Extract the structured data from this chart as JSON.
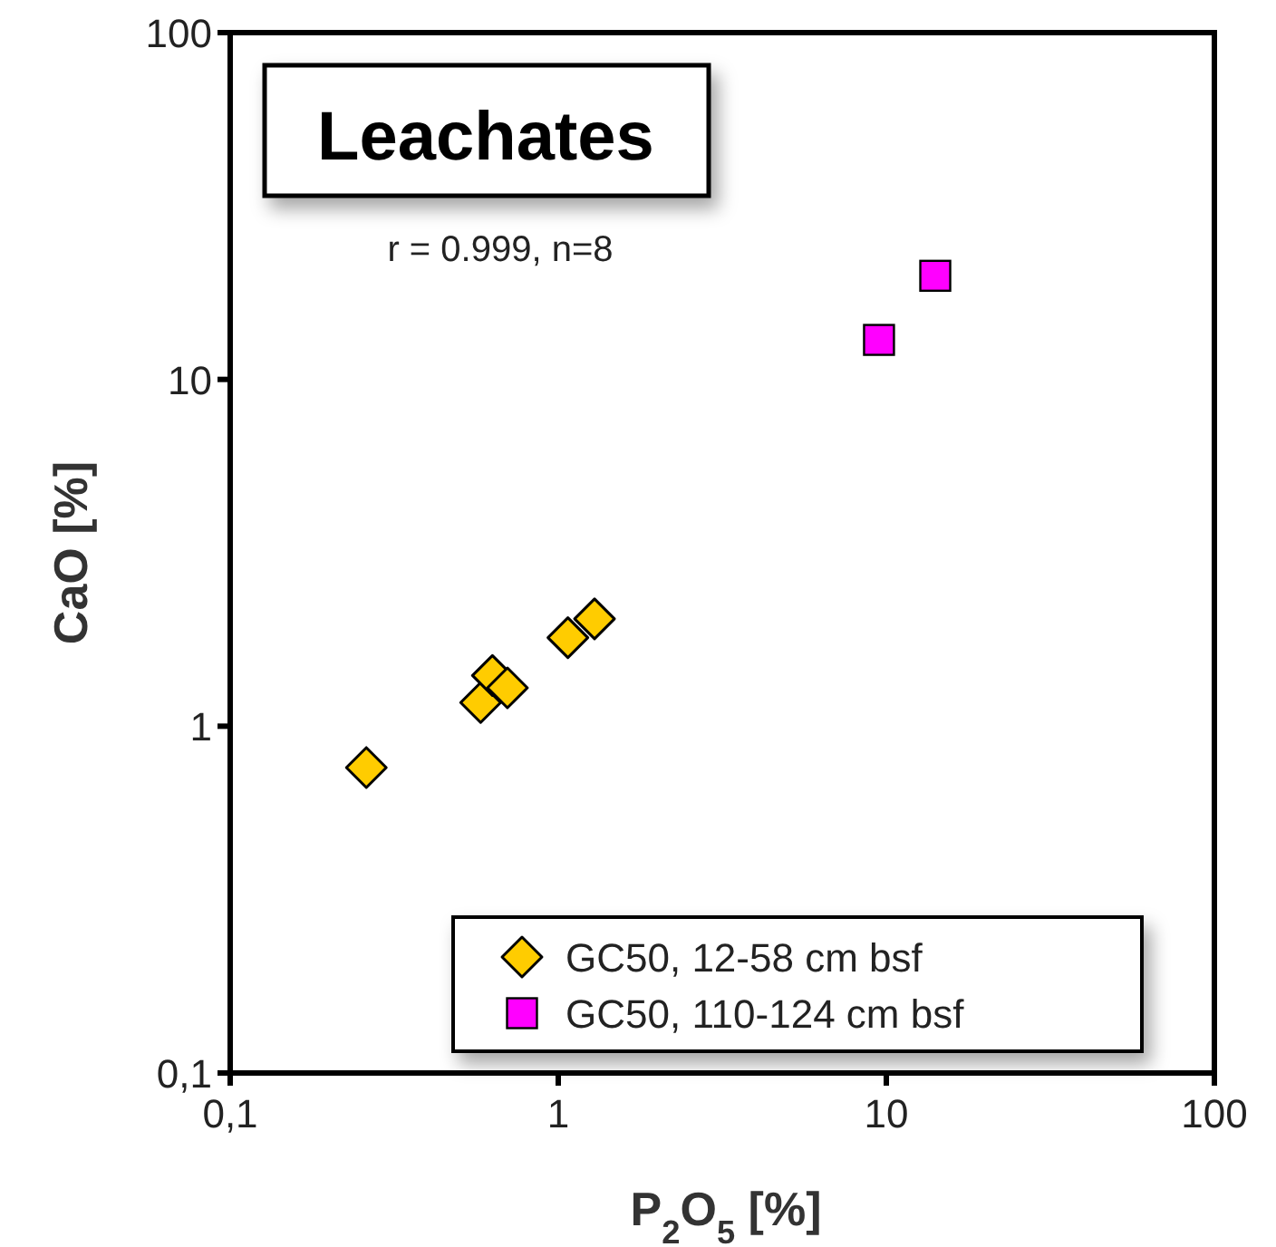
{
  "chart_data": {
    "type": "scatter",
    "title": "Leachates",
    "xlabel": "P$_{2}$O$_{5}$   [%]",
    "ylabel": "CaO [%]",
    "annotations": [
      "r = 0.999, n=8"
    ],
    "log": "xy",
    "xlim": [
      0.1,
      100
    ],
    "ylim": [
      0.1,
      100
    ],
    "xticks": [
      {
        "value": 0.1,
        "label": "0,1"
      },
      1,
      10,
      100
    ],
    "yticks": [
      {
        "value": 0.1,
        "label": "0,1"
      },
      1,
      10,
      100
    ],
    "grid": false,
    "legend": "bottom right",
    "series": [
      {
        "name": "GC50, 12-58 cm bsf",
        "color": "#ffcc00",
        "marker": "diamond",
        "x": [
          0.26,
          0.58,
          0.63,
          0.7,
          1.07,
          1.29
        ],
        "values": [
          0.76,
          1.17,
          1.4,
          1.29,
          1.8,
          2.04
        ]
      },
      {
        "name": "GC50, 110-124 cm bsf",
        "color": "#ff00ff",
        "marker": "square",
        "x": [
          9.5,
          14.1
        ],
        "values": [
          13.0,
          19.9
        ]
      }
    ]
  }
}
